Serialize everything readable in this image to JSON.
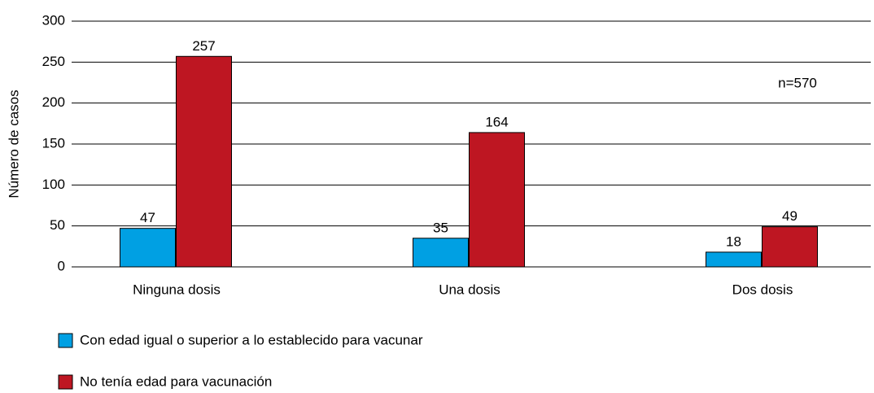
{
  "chart_data": {
    "type": "bar",
    "ylabel": "Número de casos",
    "annotation": "n=570",
    "categories": [
      "Ninguna dosis",
      "Una dosis",
      "Dos dosis"
    ],
    "series": [
      {
        "name": "Con edad igual o superior a lo establecido para vacunar",
        "color": "#00a0e3",
        "values": [
          47,
          35,
          18
        ]
      },
      {
        "name": "No tenía edad para vacunación",
        "color": "#be1622",
        "values": [
          257,
          164,
          49
        ]
      }
    ],
    "ylim": [
      0,
      300
    ],
    "yticks": [
      0,
      50,
      100,
      150,
      200,
      250,
      300
    ],
    "grid": true
  }
}
